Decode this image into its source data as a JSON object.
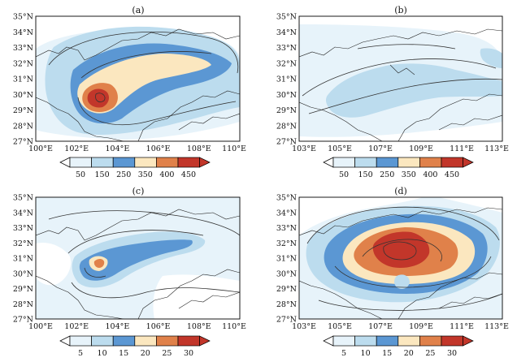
{
  "panels": [
    {
      "label": "(a)",
      "lat_labels": [
        "35°N",
        "34°N",
        "33°N",
        "32°N",
        "31°N",
        "30°N",
        "29°N",
        "28°N",
        "27°N"
      ],
      "lon_labels": [
        "100°E",
        "102°E",
        "104°E",
        "106°E",
        "108°E",
        "110°E"
      ],
      "colorbar": [
        "50",
        "150",
        "250",
        "350",
        "400",
        "450"
      ]
    },
    {
      "label": "(b)",
      "lat_labels": [
        "35°N",
        "34°N",
        "33°N",
        "32°N",
        "31°N",
        "30°N",
        "29°N",
        "28°N",
        "27°N"
      ],
      "lon_labels": [
        "103°E",
        "105°E",
        "107°E",
        "109°E",
        "111°E",
        "113°E"
      ],
      "colorbar": [
        "50",
        "150",
        "250",
        "350",
        "400",
        "450"
      ]
    },
    {
      "label": "(c)",
      "lat_labels": [
        "35°N",
        "34°N",
        "33°N",
        "32°N",
        "31°N",
        "30°N",
        "29°N",
        "28°N",
        "27°N"
      ],
      "lon_labels": [
        "100°E",
        "102°E",
        "104°E",
        "106°E",
        "108°E",
        "110°E"
      ],
      "colorbar": [
        "5",
        "10",
        "15",
        "20",
        "25",
        "30"
      ]
    },
    {
      "label": "(d)",
      "lat_labels": [
        "35°N",
        "34°N",
        "33°N",
        "32°N",
        "31°N",
        "30°N",
        "29°N",
        "28°N",
        "27°N"
      ],
      "lon_labels": [
        "103°E",
        "105°E",
        "107°E",
        "109°E",
        "111°E",
        "113°E"
      ],
      "colorbar": [
        "5",
        "10",
        "15",
        "20",
        "25",
        "30"
      ]
    }
  ],
  "colors": {
    "lightest": "#e7f3fa",
    "light_blue": "#bcdcee",
    "mid_blue": "#5b97d3",
    "beige": "#fbe7bf",
    "orange": "#e0814a",
    "red": "#c2362a"
  }
}
